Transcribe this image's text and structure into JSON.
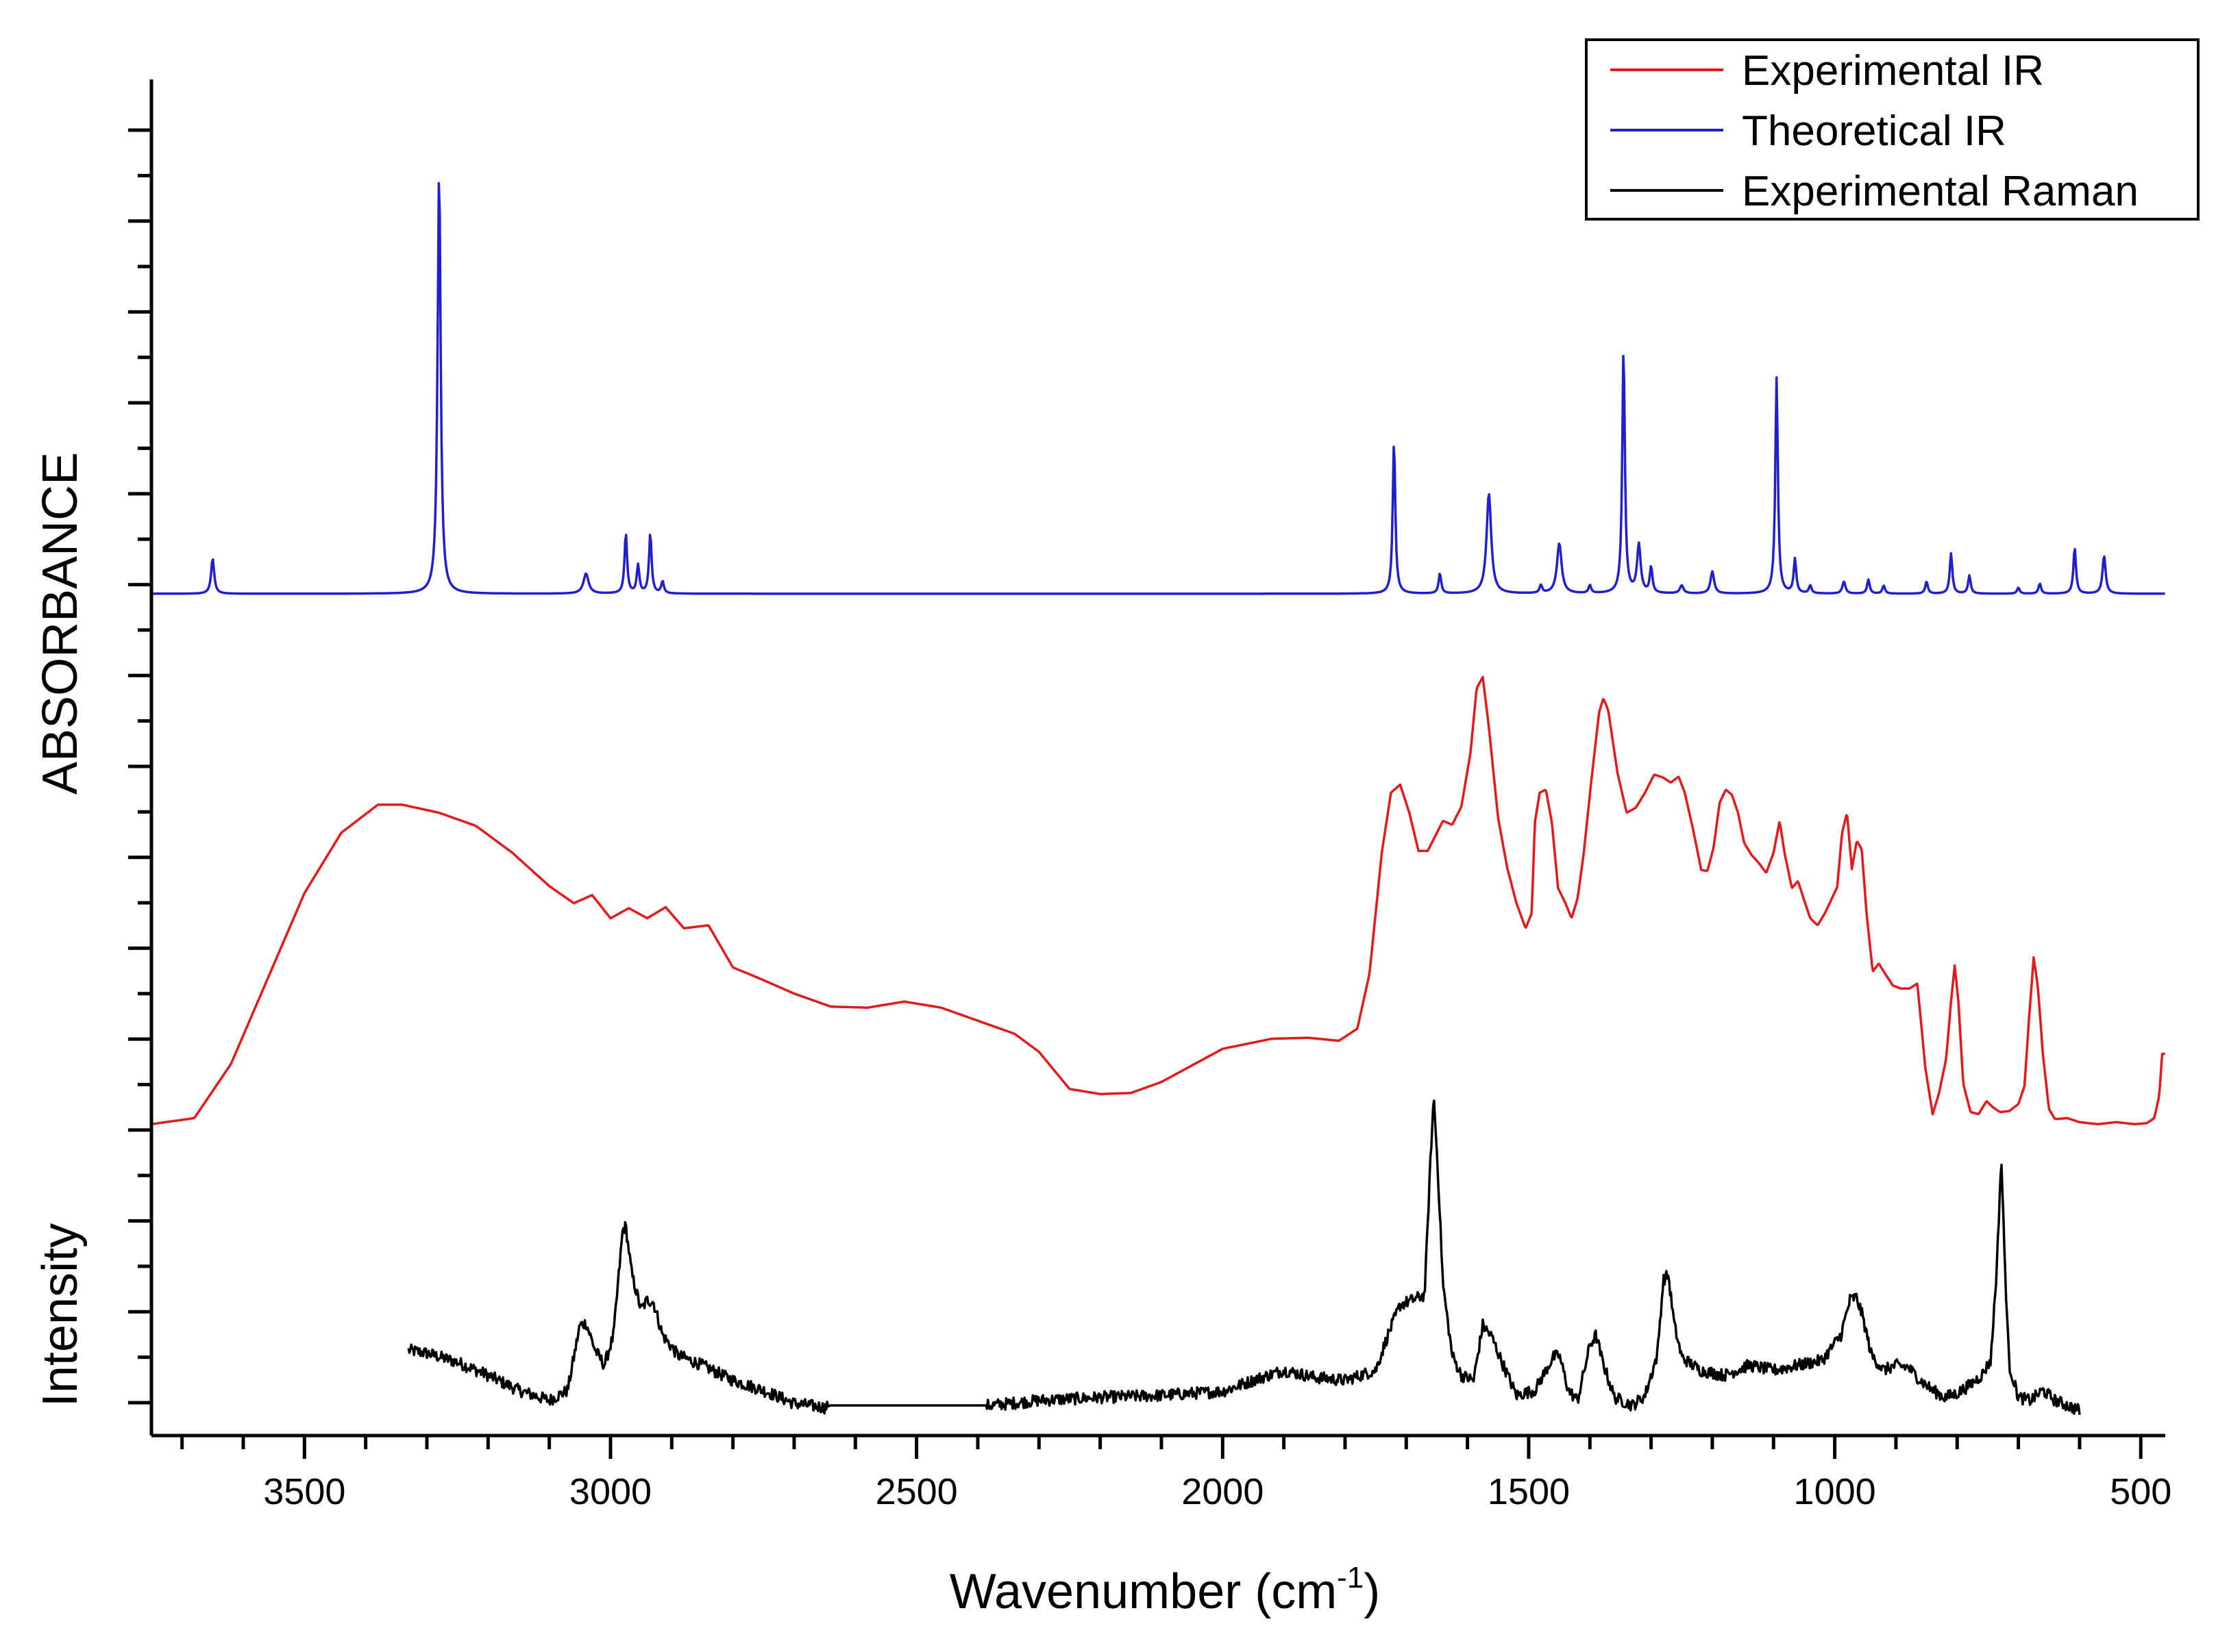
{
  "chart_data": {
    "type": "line",
    "title": "",
    "xlabel": "Wavenumber (cm",
    "xlabel_sup": "-1",
    "xlabel_close": ")",
    "ylabel_top": "ABSORBANCE",
    "ylabel_bottom": "Intensity",
    "xlim": [
      3750,
      460
    ],
    "x_ticks": [
      3500,
      3000,
      2500,
      2000,
      1500,
      1000,
      500
    ],
    "x_tick_labels": [
      "3500",
      "3000",
      "2500",
      "2000",
      "1500",
      "1000",
      "500"
    ],
    "y_note": "Spectra are vertically offset (stacked); y axis has unlabeled ticks",
    "series": [
      {
        "name": "Experimental IR",
        "color": "#e31a1c",
        "kind": "smooth",
        "baseline_level": 0.31,
        "x_range": [
          3750,
          460
        ],
        "points": [
          [
            3750,
            0.31
          ],
          [
            3680,
            0.316
          ],
          [
            3620,
            0.37
          ],
          [
            3560,
            0.455
          ],
          [
            3500,
            0.54
          ],
          [
            3440,
            0.6
          ],
          [
            3380,
            0.628
          ],
          [
            3340,
            0.628
          ],
          [
            3280,
            0.62
          ],
          [
            3220,
            0.607
          ],
          [
            3160,
            0.58
          ],
          [
            3100,
            0.547
          ],
          [
            3060,
            0.53
          ],
          [
            3030,
            0.538
          ],
          [
            3000,
            0.515
          ],
          [
            2970,
            0.525
          ],
          [
            2940,
            0.515
          ],
          [
            2910,
            0.526
          ],
          [
            2880,
            0.505
          ],
          [
            2840,
            0.508
          ],
          [
            2800,
            0.466
          ],
          [
            2760,
            0.456
          ],
          [
            2700,
            0.44
          ],
          [
            2640,
            0.427
          ],
          [
            2580,
            0.426
          ],
          [
            2520,
            0.432
          ],
          [
            2460,
            0.426
          ],
          [
            2400,
            0.413
          ],
          [
            2340,
            0.4
          ],
          [
            2300,
            0.382
          ],
          [
            2250,
            0.345
          ],
          [
            2200,
            0.34
          ],
          [
            2150,
            0.341
          ],
          [
            2100,
            0.352
          ],
          [
            2000,
            0.385
          ],
          [
            1920,
            0.395
          ],
          [
            1860,
            0.396
          ],
          [
            1810,
            0.393
          ],
          [
            1780,
            0.405
          ],
          [
            1760,
            0.46
          ],
          [
            1740,
            0.58
          ],
          [
            1725,
            0.64
          ],
          [
            1710,
            0.648
          ],
          [
            1695,
            0.62
          ],
          [
            1680,
            0.582
          ],
          [
            1665,
            0.582
          ],
          [
            1650,
            0.6
          ],
          [
            1640,
            0.612
          ],
          [
            1625,
            0.608
          ],
          [
            1610,
            0.626
          ],
          [
            1595,
            0.68
          ],
          [
            1585,
            0.744
          ],
          [
            1575,
            0.755
          ],
          [
            1565,
            0.705
          ],
          [
            1550,
            0.615
          ],
          [
            1535,
            0.565
          ],
          [
            1520,
            0.53
          ],
          [
            1505,
            0.505
          ],
          [
            1495,
            0.52
          ],
          [
            1490,
            0.61
          ],
          [
            1482,
            0.64
          ],
          [
            1472,
            0.643
          ],
          [
            1462,
            0.61
          ],
          [
            1452,
            0.545
          ],
          [
            1440,
            0.53
          ],
          [
            1430,
            0.515
          ],
          [
            1420,
            0.535
          ],
          [
            1410,
            0.58
          ],
          [
            1398,
            0.65
          ],
          [
            1385,
            0.72
          ],
          [
            1378,
            0.734
          ],
          [
            1370,
            0.722
          ],
          [
            1355,
            0.66
          ],
          [
            1340,
            0.62
          ],
          [
            1325,
            0.625
          ],
          [
            1310,
            0.64
          ],
          [
            1295,
            0.658
          ],
          [
            1280,
            0.655
          ],
          [
            1268,
            0.65
          ],
          [
            1255,
            0.656
          ],
          [
            1245,
            0.64
          ],
          [
            1232,
            0.605
          ],
          [
            1218,
            0.563
          ],
          [
            1208,
            0.562
          ],
          [
            1198,
            0.585
          ],
          [
            1188,
            0.63
          ],
          [
            1178,
            0.643
          ],
          [
            1168,
            0.638
          ],
          [
            1158,
            0.62
          ],
          [
            1148,
            0.59
          ],
          [
            1136,
            0.578
          ],
          [
            1124,
            0.57
          ],
          [
            1112,
            0.56
          ],
          [
            1100,
            0.58
          ],
          [
            1090,
            0.612
          ],
          [
            1082,
            0.58
          ],
          [
            1070,
            0.545
          ],
          [
            1060,
            0.552
          ],
          [
            1050,
            0.533
          ],
          [
            1040,
            0.515
          ],
          [
            1028,
            0.508
          ],
          [
            1016,
            0.52
          ],
          [
            1006,
            0.533
          ],
          [
            996,
            0.546
          ],
          [
            988,
            0.6
          ],
          [
            980,
            0.62
          ],
          [
            972,
            0.564
          ],
          [
            964,
            0.592
          ],
          [
            956,
            0.584
          ],
          [
            948,
            0.52
          ],
          [
            938,
            0.462
          ],
          [
            928,
            0.47
          ],
          [
            918,
            0.46
          ],
          [
            905,
            0.448
          ],
          [
            892,
            0.445
          ],
          [
            878,
            0.445
          ],
          [
            865,
            0.45
          ],
          [
            852,
            0.366
          ],
          [
            840,
            0.32
          ],
          [
            830,
            0.34
          ],
          [
            818,
            0.375
          ],
          [
            810,
            0.432
          ],
          [
            804,
            0.468
          ],
          [
            798,
            0.432
          ],
          [
            790,
            0.35
          ],
          [
            778,
            0.322
          ],
          [
            765,
            0.32
          ],
          [
            752,
            0.333
          ],
          [
            742,
            0.327
          ],
          [
            730,
            0.322
          ],
          [
            715,
            0.323
          ],
          [
            700,
            0.33
          ],
          [
            690,
            0.348
          ],
          [
            682,
            0.42
          ],
          [
            675,
            0.476
          ],
          [
            668,
            0.446
          ],
          [
            660,
            0.38
          ],
          [
            650,
            0.325
          ],
          [
            640,
            0.315
          ],
          [
            620,
            0.316
          ],
          [
            600,
            0.312
          ],
          [
            570,
            0.31
          ],
          [
            540,
            0.312
          ],
          [
            510,
            0.31
          ],
          [
            490,
            0.311
          ],
          [
            478,
            0.316
          ],
          [
            470,
            0.338
          ],
          [
            465,
            0.38
          ]
        ]
      },
      {
        "name": "Theoretical IR",
        "color": "#1f1fd0",
        "kind": "lorentzian",
        "baseline_level": 0.838,
        "x_range": [
          3750,
          460
        ],
        "peaks": [
          [
            3650,
            0.035,
            6
          ],
          [
            3280,
            0.42,
            6
          ],
          [
            3040,
            0.02,
            10
          ],
          [
            2975,
            0.06,
            5
          ],
          [
            2955,
            0.028,
            5
          ],
          [
            2935,
            0.06,
            5
          ],
          [
            2915,
            0.012,
            5
          ],
          [
            1720,
            0.152,
            5
          ],
          [
            1645,
            0.02,
            5
          ],
          [
            1565,
            0.1,
            9
          ],
          [
            1480,
            0.008,
            5
          ],
          [
            1450,
            0.05,
            9
          ],
          [
            1400,
            0.008,
            5
          ],
          [
            1345,
            0.245,
            5
          ],
          [
            1320,
            0.048,
            7
          ],
          [
            1300,
            0.026,
            5
          ],
          [
            1250,
            0.008,
            7
          ],
          [
            1200,
            0.022,
            7
          ],
          [
            1095,
            0.215,
            5
          ],
          [
            1065,
            0.034,
            5
          ],
          [
            1040,
            0.008,
            5
          ],
          [
            985,
            0.012,
            6
          ],
          [
            945,
            0.014,
            5
          ],
          [
            920,
            0.008,
            5
          ],
          [
            850,
            0.012,
            5
          ],
          [
            810,
            0.04,
            5
          ],
          [
            780,
            0.018,
            5
          ],
          [
            700,
            0.006,
            5
          ],
          [
            665,
            0.01,
            5
          ],
          [
            608,
            0.046,
            5
          ],
          [
            560,
            0.038,
            6
          ]
        ]
      },
      {
        "name": "Experimental Raman",
        "color": "#000000",
        "kind": "noisy",
        "baseline_level": 0.028,
        "x_range": [
          3330,
          600
        ],
        "noise": 0.006,
        "points": [
          [
            3330,
            0.085
          ],
          [
            3300,
            0.082
          ],
          [
            3250,
            0.073
          ],
          [
            3200,
            0.06
          ],
          [
            3150,
            0.045
          ],
          [
            3100,
            0.035
          ],
          [
            3070,
            0.045
          ],
          [
            3050,
            0.11
          ],
          [
            3040,
            0.112
          ],
          [
            3025,
            0.085
          ],
          [
            3010,
            0.07
          ],
          [
            2995,
            0.1
          ],
          [
            2980,
            0.205
          ],
          [
            2975,
            0.208
          ],
          [
            2965,
            0.16
          ],
          [
            2950,
            0.125
          ],
          [
            2940,
            0.135
          ],
          [
            2930,
            0.133
          ],
          [
            2915,
            0.1
          ],
          [
            2890,
            0.08
          ],
          [
            2850,
            0.07
          ],
          [
            2800,
            0.055
          ],
          [
            2750,
            0.045
          ],
          [
            2700,
            0.032
          ],
          [
            2650,
            0.028
          ],
          [
            2640,
            0.03
          ],
          [
            2390,
            0.03
          ],
          [
            2380,
            0.03
          ],
          [
            2300,
            0.035
          ],
          [
            2200,
            0.038
          ],
          [
            2100,
            0.04
          ],
          [
            2000,
            0.044
          ],
          [
            1950,
            0.055
          ],
          [
            1900,
            0.065
          ],
          [
            1850,
            0.058
          ],
          [
            1800,
            0.055
          ],
          [
            1750,
            0.065
          ],
          [
            1730,
            0.1
          ],
          [
            1710,
            0.13
          ],
          [
            1690,
            0.135
          ],
          [
            1670,
            0.14
          ],
          [
            1660,
            0.28
          ],
          [
            1655,
            0.338
          ],
          [
            1648,
            0.26
          ],
          [
            1640,
            0.15
          ],
          [
            1625,
            0.08
          ],
          [
            1610,
            0.06
          ],
          [
            1590,
            0.055
          ],
          [
            1575,
            0.11
          ],
          [
            1560,
            0.098
          ],
          [
            1545,
            0.075
          ],
          [
            1520,
            0.04
          ],
          [
            1490,
            0.045
          ],
          [
            1460,
            0.078
          ],
          [
            1450,
            0.08
          ],
          [
            1435,
            0.045
          ],
          [
            1420,
            0.035
          ],
          [
            1400,
            0.09
          ],
          [
            1390,
            0.1
          ],
          [
            1380,
            0.075
          ],
          [
            1360,
            0.038
          ],
          [
            1330,
            0.03
          ],
          [
            1310,
            0.04
          ],
          [
            1290,
            0.08
          ],
          [
            1280,
            0.155
          ],
          [
            1272,
            0.16
          ],
          [
            1262,
            0.11
          ],
          [
            1250,
            0.078
          ],
          [
            1220,
            0.065
          ],
          [
            1180,
            0.06
          ],
          [
            1140,
            0.07
          ],
          [
            1100,
            0.065
          ],
          [
            1060,
            0.07
          ],
          [
            1020,
            0.075
          ],
          [
            990,
            0.1
          ],
          [
            975,
            0.135
          ],
          [
            965,
            0.138
          ],
          [
            955,
            0.12
          ],
          [
            940,
            0.08
          ],
          [
            920,
            0.065
          ],
          [
            900,
            0.07
          ],
          [
            880,
            0.068
          ],
          [
            860,
            0.055
          ],
          [
            840,
            0.045
          ],
          [
            820,
            0.038
          ],
          [
            800,
            0.042
          ],
          [
            780,
            0.05
          ],
          [
            760,
            0.06
          ],
          [
            745,
            0.075
          ],
          [
            735,
            0.17
          ],
          [
            728,
            0.278
          ],
          [
            722,
            0.17
          ],
          [
            715,
            0.07
          ],
          [
            700,
            0.038
          ],
          [
            680,
            0.035
          ],
          [
            660,
            0.045
          ],
          [
            640,
            0.035
          ],
          [
            620,
            0.03
          ],
          [
            600,
            0.025
          ]
        ]
      }
    ],
    "legend": {
      "placement": "top-right",
      "entries": [
        {
          "label": "Experimental IR",
          "color": "#e31a1c"
        },
        {
          "label": "Theoretical IR",
          "color": "#1f1fd0"
        },
        {
          "label": "Experimental Raman",
          "color": "#000000"
        }
      ]
    },
    "ylim": [
      0,
      1.35
    ],
    "y_tick_count": 28
  }
}
